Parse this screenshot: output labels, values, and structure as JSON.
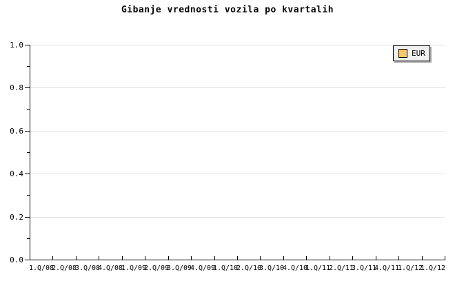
{
  "chart_data": {
    "type": "line",
    "title": "Gibanje vrednosti vozila po kvartalih",
    "categories": [
      "1.Q/08",
      "2.Q/08",
      "3.Q/08",
      "4.Q/08",
      "1.Q/09",
      "2.Q/09",
      "3.Q/09",
      "4.Q/09",
      "1.Q/10",
      "2.Q/10",
      "3.Q/10",
      "4.Q/10",
      "1.Q/11",
      "2.Q/11",
      "3.Q/11",
      "4.Q/11",
      "1.Q/12",
      "1.Q/12"
    ],
    "series": [
      {
        "name": "EUR",
        "values": []
      }
    ],
    "xlabel": "",
    "ylabel": "",
    "ylim": [
      0.0,
      1.0
    ],
    "ytick_labels": [
      "1.0",
      "0.8",
      "0.6",
      "0.4",
      "0.2",
      "0.0"
    ],
    "ytick_step": 0.2,
    "minor_ytick_step": 0.1,
    "grid": "horizontal-major",
    "legend": {
      "position": "top-right",
      "entries": [
        {
          "label": "EUR",
          "color": "#f9c86a"
        }
      ]
    },
    "colors": {
      "axis": "#000000",
      "grid": "#e0e0e0",
      "text": "#000000",
      "legend_background": "#efefef",
      "legend_border": "#000000",
      "legend_shadow": "#a9a9a9",
      "background": "#ffffff"
    }
  }
}
